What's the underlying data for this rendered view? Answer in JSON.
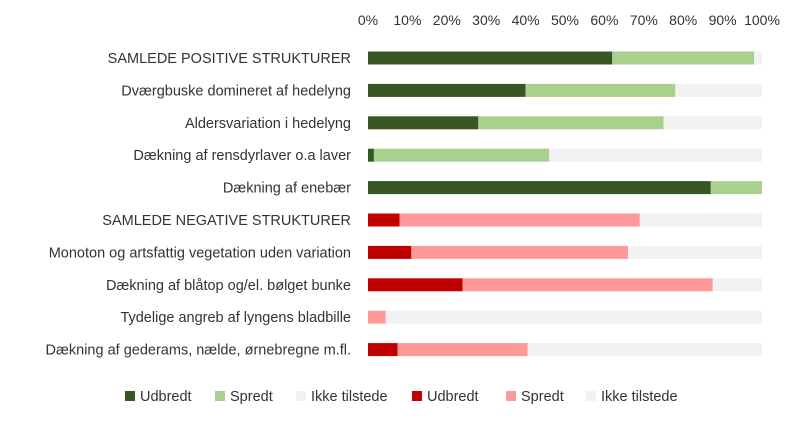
{
  "chart_data": {
    "type": "bar",
    "orientation": "horizontal",
    "stacked": "percent",
    "title": "",
    "xlabel": "",
    "ylabel": "",
    "xlim": [
      0,
      100
    ],
    "x_ticks": [
      "0%",
      "10%",
      "20%",
      "30%",
      "40%",
      "50%",
      "60%",
      "70%",
      "80%",
      "90%",
      "100%"
    ],
    "x_axis_position": "top",
    "grid": false,
    "legend_position": "bottom",
    "categories": [
      "SAMLEDE POSITIVE STRUKTURER",
      "Dværgbuske domineret af hedelyng",
      "Aldersvariation i hedelyng",
      "Dækning af rensdyrlaver o.a laver",
      "Dækning af enebær",
      "SAMLEDE NEGATIVE STRUKTURER",
      "Monoton og artsfattig vegetation uden variation",
      "Dækning af blåtop og/el. bølget bunke",
      "Tydelige angreb af lyngens bladbille",
      "Dækning af gederams, nælde, ørnebregne m.fl."
    ],
    "series": [
      {
        "name": "Udbredt",
        "group": "positive",
        "color": "#375623",
        "values": [
          62,
          40,
          28,
          1.5,
          87,
          0,
          0,
          0,
          0,
          0
        ]
      },
      {
        "name": "Spredt",
        "group": "positive",
        "color": "#A9D18E",
        "values": [
          36,
          38,
          47,
          44.5,
          13,
          0,
          0,
          0,
          0,
          0
        ]
      },
      {
        "name": "Ikke tilstede",
        "group": "positive",
        "color": "#F2F2F2",
        "values": [
          2,
          22,
          25,
          54,
          0,
          0,
          0,
          0,
          0,
          0
        ]
      },
      {
        "name": "Udbredt",
        "group": "negative",
        "color": "#C00000",
        "values": [
          0,
          0,
          0,
          0,
          0,
          8,
          11,
          24,
          0,
          7.5
        ]
      },
      {
        "name": "Spredt",
        "group": "negative",
        "color": "#FF9999",
        "values": [
          0,
          0,
          0,
          0,
          0,
          61,
          55,
          63.5,
          4.5,
          33
        ]
      },
      {
        "name": "Ikke tilstede",
        "group": "negative",
        "color": "#F2F2F2",
        "values": [
          0,
          0,
          0,
          0,
          0,
          31,
          34,
          12.5,
          95.5,
          59.5
        ]
      }
    ]
  }
}
